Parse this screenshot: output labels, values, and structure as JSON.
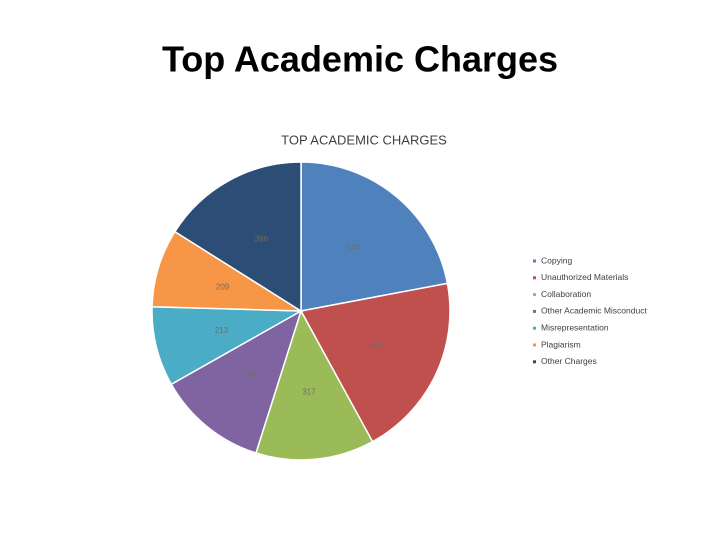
{
  "slide_title": "Top Academic Charges",
  "chart_data": {
    "type": "pie",
    "title": "TOP ACADEMIC CHARGES",
    "categories": [
      "Copying",
      "Unauthorized Materials",
      "Collaboration",
      "Other Academic Misconduct",
      "Misrepresentation",
      "Plagiarism",
      "Other Charges"
    ],
    "values": [
      543,
      493,
      317,
      294,
      213,
      209,
      396
    ],
    "colors": [
      "#4f81bd",
      "#c0504d",
      "#9bbb59",
      "#8064a2",
      "#4bacc6",
      "#f79646",
      "#2c4d75"
    ],
    "legend": "right"
  }
}
